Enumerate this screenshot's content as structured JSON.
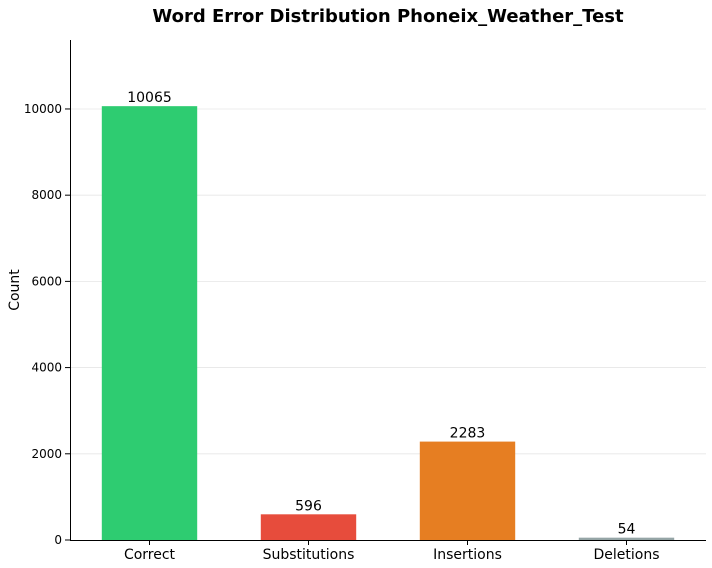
{
  "chart_data": {
    "type": "bar",
    "title": "Word Error Distribution Phoneix_Weather_Test",
    "xlabel": "",
    "ylabel": "Count",
    "categories": [
      "Correct",
      "Substitutions",
      "Insertions",
      "Deletions"
    ],
    "values": [
      10065,
      596,
      2283,
      54
    ],
    "data_labels": [
      "10065",
      "596",
      "2283",
      "54"
    ],
    "colors": [
      "#2ecc71",
      "#e74c3c",
      "#e67e22",
      "#95a5a6"
    ],
    "ylim": [
      0,
      11600
    ],
    "yticks": [
      0,
      2000,
      4000,
      6000,
      8000,
      10000
    ],
    "ytick_labels": [
      "0",
      "2000",
      "4000",
      "6000",
      "8000",
      "10000"
    ],
    "grid": true,
    "legend": "none"
  }
}
